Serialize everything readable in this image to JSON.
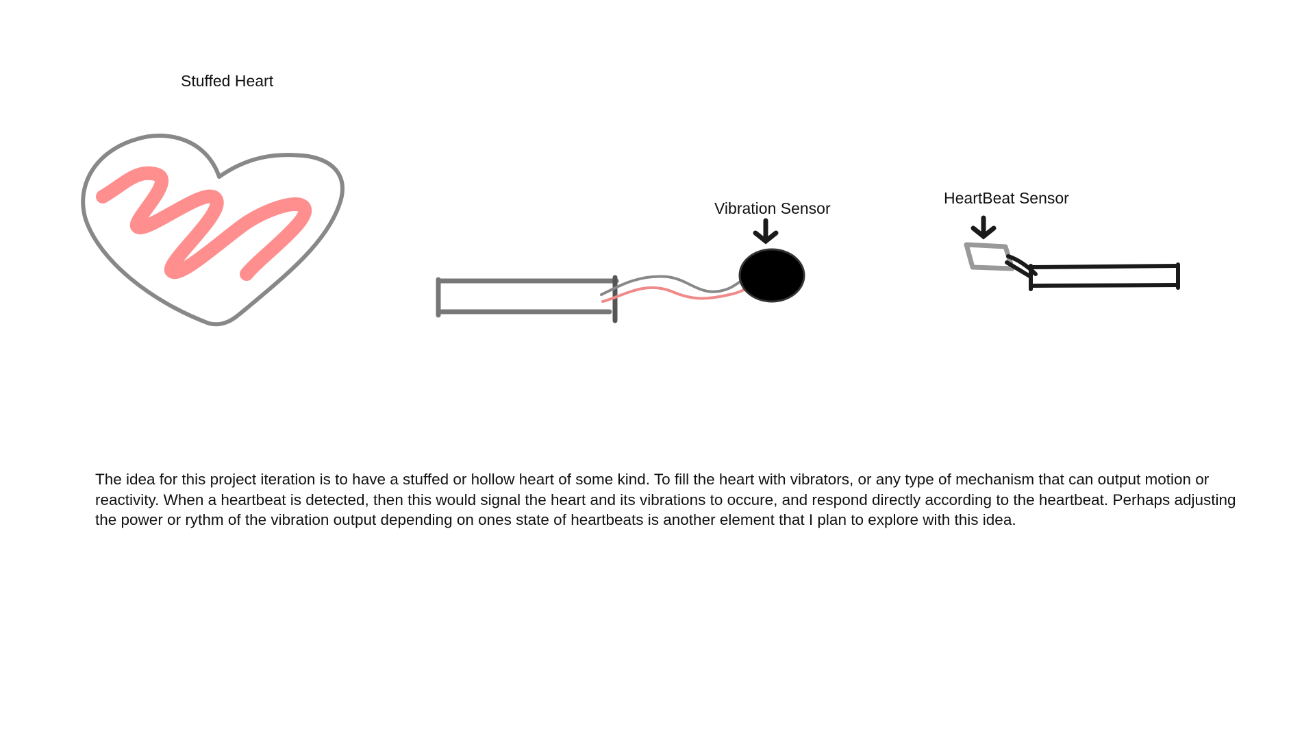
{
  "labels": {
    "heart_title": "Stuffed Heart",
    "vibration_title": "Vibration Sensor",
    "heartbeat_title": "HeartBeat Sensor"
  },
  "description": "The idea for this project iteration is to have a stuffed or hollow heart of some kind. To fill the heart with vibrators, or any type of mechanism that can output motion or reactivity. When a heartbeat is detected, then this would signal the heart and its vibrations to occure, and respond directly according to the heartbeat. Perhaps adjusting the power or rythm of the vibration output depending on ones state of heartbeats is another element that I plan to explore with this idea.",
  "colors": {
    "outline_gray": "#888888",
    "scribble_pink": "#ff8f8f",
    "wire_red": "#f08a8a",
    "dark": "#1a1a1a",
    "sensor_black": "#000000"
  }
}
